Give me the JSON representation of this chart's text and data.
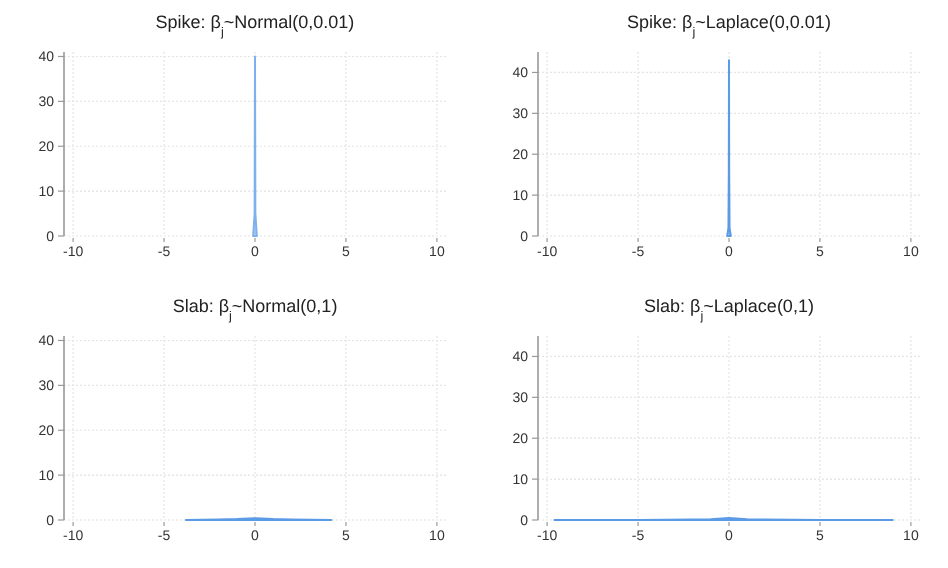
{
  "chart_data": [
    {
      "type": "area",
      "title": "Spike: β$_{j}$~Normal(0,0.01)",
      "x": [
        -0.1,
        -0.02,
        -0.01,
        0,
        0.01,
        0.02,
        0.1
      ],
      "values": [
        0,
        5,
        24,
        40,
        24,
        5,
        0
      ],
      "color": "#7fb0ee",
      "xlim": [
        -10.5,
        10.5
      ],
      "xticks": [
        -10,
        -5,
        0,
        5,
        10
      ],
      "ylim": [
        0,
        41
      ],
      "yticks": [
        0,
        10,
        20,
        30,
        40
      ],
      "grid": true
    },
    {
      "type": "area",
      "title": "Spike: β$_{j}$~Laplace(0,0.01)",
      "x": [
        -0.1,
        -0.03,
        -0.01,
        0,
        0.01,
        0.03,
        0.1
      ],
      "values": [
        0,
        2,
        16,
        43,
        16,
        2,
        0
      ],
      "color": "#5b9be6",
      "xlim": [
        -10.5,
        10.5
      ],
      "xticks": [
        -10,
        -5,
        0,
        5,
        10
      ],
      "ylim": [
        0,
        45
      ],
      "yticks": [
        0,
        10,
        20,
        30,
        40
      ],
      "grid": true
    },
    {
      "type": "area",
      "title": "Slab: β$_{j}$~Normal(0,1)",
      "x": [
        -3.8,
        -2,
        -1,
        0,
        1,
        2,
        4.2
      ],
      "values": [
        0,
        0.1,
        0.2,
        0.4,
        0.2,
        0.1,
        0
      ],
      "color": "#5b9be6",
      "xlim": [
        -10.5,
        10.5
      ],
      "xticks": [
        -10,
        -5,
        0,
        5,
        10
      ],
      "ylim": [
        0,
        41
      ],
      "yticks": [
        0,
        10,
        20,
        30,
        40
      ],
      "grid": true
    },
    {
      "type": "area",
      "title": "Slab: β$_{j}$~Laplace(0,1)",
      "x": [
        -9.6,
        -5,
        -2,
        -1,
        0,
        1,
        2,
        5,
        9
      ],
      "values": [
        0,
        0,
        0.1,
        0.2,
        0.5,
        0.2,
        0.1,
        0,
        0
      ],
      "color": "#5b9be6",
      "xlim": [
        -10.5,
        10.5
      ],
      "xticks": [
        -10,
        -5,
        0,
        5,
        10
      ],
      "ylim": [
        0,
        45
      ],
      "yticks": [
        0,
        10,
        20,
        30,
        40
      ],
      "grid": true
    }
  ]
}
